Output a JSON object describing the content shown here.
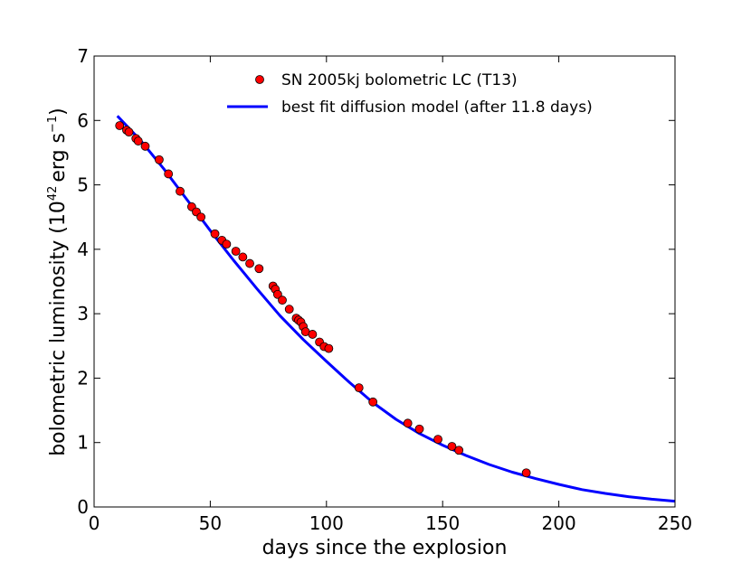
{
  "chart_data": {
    "type": "scatter",
    "xlabel": "days since the explosion",
    "ylabel_prefix": "bolometric luminosity (",
    "ylabel_base": "10",
    "ylabel_exp": "42",
    "ylabel_unit": "erg s",
    "ylabel_unit_exp": "−1",
    "ylabel_suffix": ")",
    "xlim": [
      0,
      250
    ],
    "ylim": [
      0,
      7
    ],
    "xticks": [
      0,
      50,
      100,
      150,
      200,
      250
    ],
    "yticks": [
      0,
      1,
      2,
      3,
      4,
      5,
      6,
      7
    ],
    "legend_position": "top-right",
    "series": [
      {
        "name": "SN 2005kj bolometric LC (T13)",
        "kind": "points",
        "color": "#ff0000",
        "edge_color": "#000000",
        "x": [
          11,
          14,
          15,
          18,
          19,
          22,
          28,
          32,
          37,
          42,
          44,
          46,
          52,
          55,
          57,
          61,
          64,
          67,
          71,
          77,
          78,
          79,
          81,
          84,
          87,
          88,
          89,
          90,
          91,
          94,
          97,
          99,
          101,
          114,
          120,
          135,
          140,
          148,
          154,
          157,
          186
        ],
        "y": [
          5.92,
          5.85,
          5.82,
          5.72,
          5.68,
          5.6,
          5.39,
          5.17,
          4.9,
          4.66,
          4.58,
          4.5,
          4.24,
          4.14,
          4.08,
          3.97,
          3.88,
          3.78,
          3.7,
          3.43,
          3.38,
          3.3,
          3.21,
          3.07,
          2.93,
          2.9,
          2.87,
          2.8,
          2.72,
          2.68,
          2.56,
          2.49,
          2.46,
          1.85,
          1.63,
          1.3,
          1.21,
          1.05,
          0.94,
          0.88,
          0.53
        ]
      },
      {
        "name": "best fit diffusion model (after 11.8 days)",
        "kind": "line",
        "color": "#0000ff",
        "x": [
          10,
          20,
          30,
          40,
          50,
          60,
          70,
          80,
          90,
          100,
          110,
          120,
          130,
          140,
          150,
          160,
          170,
          180,
          190,
          200,
          210,
          220,
          230,
          240,
          250
        ],
        "y": [
          6.07,
          5.69,
          5.25,
          4.77,
          4.29,
          3.83,
          3.39,
          2.97,
          2.6,
          2.26,
          1.93,
          1.62,
          1.36,
          1.14,
          0.96,
          0.8,
          0.66,
          0.54,
          0.44,
          0.35,
          0.27,
          0.21,
          0.16,
          0.12,
          0.09
        ]
      }
    ]
  }
}
